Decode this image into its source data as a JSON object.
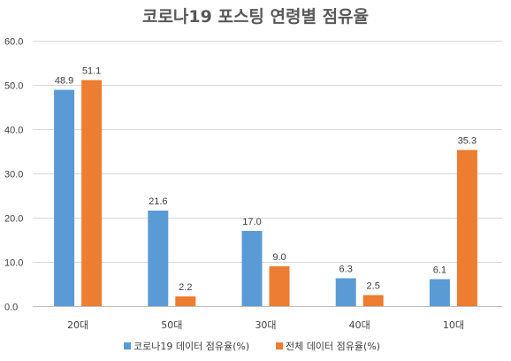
{
  "chart_data": {
    "type": "bar",
    "title": "코로나19 포스팅 연령별 점유율",
    "categories": [
      "20대",
      "50대",
      "30대",
      "40대",
      "10대"
    ],
    "series": [
      {
        "name": "코로나19 데이터 점유율(%)",
        "color": "#5b9bd5",
        "values": [
          48.9,
          21.6,
          17.0,
          6.3,
          6.1
        ],
        "labels": [
          "48.9",
          "21.6",
          "17.0",
          "6.3",
          "6.1"
        ]
      },
      {
        "name": "전체 데이터 점유율(%)",
        "color": "#ed7d31",
        "values": [
          51.1,
          2.2,
          9.0,
          2.5,
          35.3
        ],
        "labels": [
          "51.1",
          "2.2",
          "9.0",
          "2.5",
          "35.3"
        ]
      }
    ],
    "ylim": [
      0,
      60
    ],
    "yticks": [
      "0.0",
      "10.0",
      "20.0",
      "30.0",
      "40.0",
      "50.0",
      "60.0"
    ],
    "grid": true,
    "legend": "bottom"
  }
}
